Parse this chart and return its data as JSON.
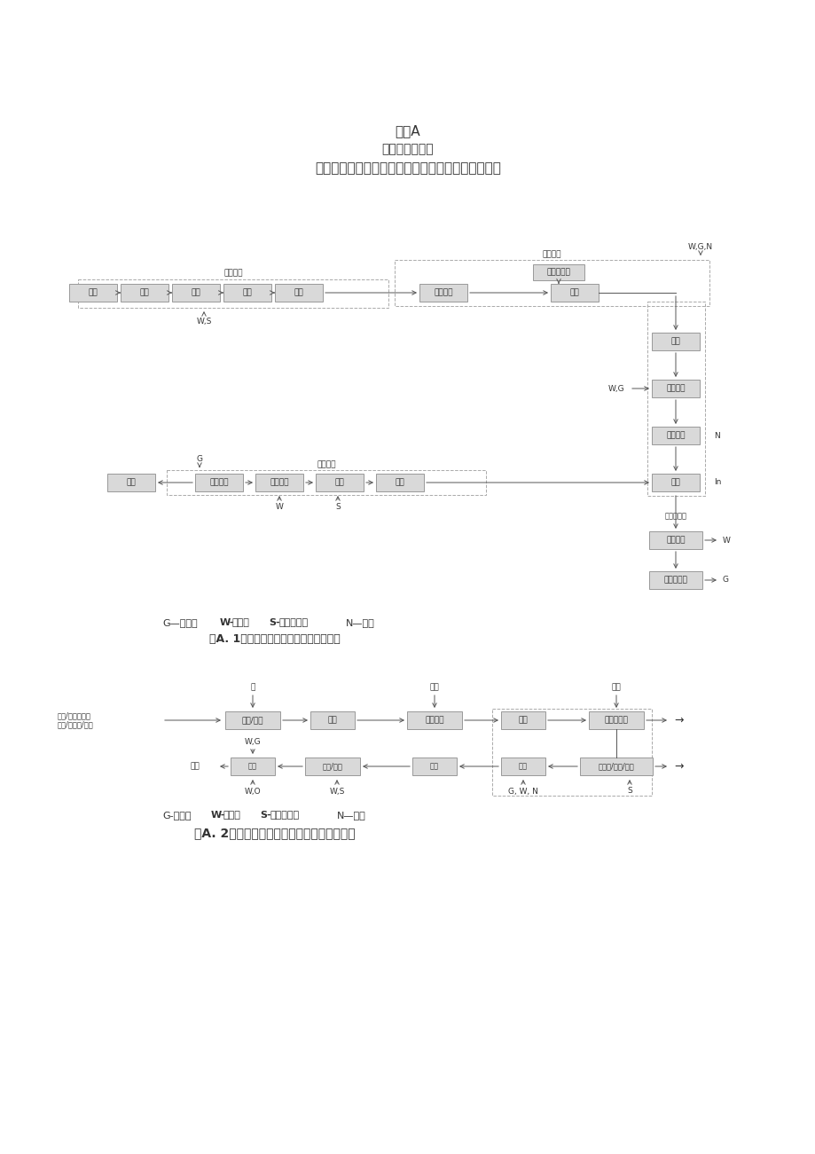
{
  "title1": "附录A",
  "title2": "（资料性附录）",
  "title3": "典型调味品、发酵制品生产工艺流程及主要产污环节",
  "bg_color": "#ffffff",
  "fig1_legend": "G—废气；W-废水；S—固体废物；N—噪声",
  "fig1_caption": "图A. 1味精生产工艺流程及主要产污环节",
  "fig2_legend": "G-废气；W-废水；S-固体废物；N—噪声",
  "fig2_caption": "图A. 2典型酱油生产工艺流程及主要产污环节",
  "box_bg": "#d9d9d9",
  "box_border": "#999999",
  "dashed_color": "#aaaaaa",
  "text_color": "#333333",
  "arrow_color": "#555555"
}
